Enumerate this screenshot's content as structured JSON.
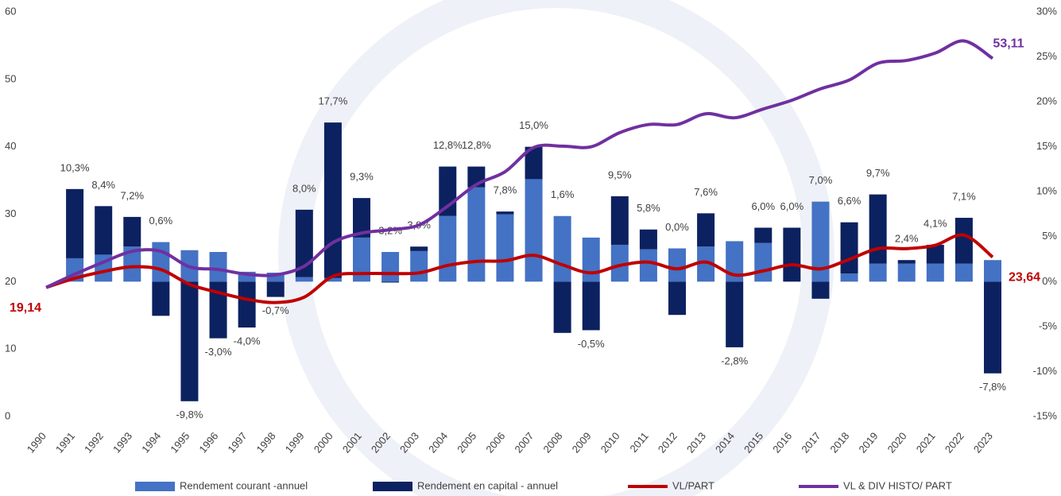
{
  "chart_data": {
    "type": "bar_line",
    "categories": [
      "1990",
      "1991",
      "1992",
      "1993",
      "1994",
      "1995",
      "1996",
      "1997",
      "1998",
      "1999",
      "2000",
      "2001",
      "2002",
      "2003",
      "2004",
      "2005",
      "2006",
      "2007",
      "2008",
      "2009",
      "2010",
      "2011",
      "2012",
      "2013",
      "2014",
      "2015",
      "2016",
      "2017",
      "2018",
      "2019",
      "2020",
      "2021",
      "2022",
      "2023"
    ],
    "series": [
      {
        "name": "Rendement courant -annuel",
        "color": "#4472c4",
        "axis": "y2",
        "kind": "bar",
        "values": [
          null,
          2.6,
          3.0,
          3.9,
          4.4,
          3.5,
          3.3,
          1.1,
          1.0,
          0.5,
          0.4,
          4.9,
          3.3,
          3.4,
          7.3,
          10.5,
          7.5,
          11.4,
          7.3,
          4.9,
          4.1,
          3.6,
          3.7,
          3.9,
          4.5,
          4.3,
          0,
          8.9,
          0.9,
          2.0,
          2.0,
          2.0,
          2.0,
          2.4
        ]
      },
      {
        "name": "Rendement en capital - annuel",
        "color": "#0c2160",
        "axis": "y2",
        "kind": "bar",
        "values": [
          null,
          7.7,
          5.4,
          3.3,
          -3.8,
          -13.3,
          -6.3,
          -5.1,
          -1.7,
          7.5,
          17.3,
          4.4,
          -0.1,
          0.5,
          5.5,
          2.3,
          0.3,
          3.6,
          -5.7,
          -5.4,
          5.4,
          2.2,
          -3.7,
          3.7,
          -7.3,
          1.7,
          6.0,
          -1.9,
          5.7,
          7.7,
          0.4,
          2.1,
          5.1,
          -10.2
        ]
      },
      {
        "name": "VL/PART",
        "color": "#c00000",
        "kind": "line",
        "values": [
          19.14,
          20.5,
          21.5,
          22.2,
          21.8,
          19.6,
          18.4,
          17.4,
          16.9,
          17.7,
          20.8,
          21.2,
          21.2,
          21.3,
          22.4,
          23.0,
          23.1,
          23.9,
          22.5,
          21.3,
          22.4,
          22.9,
          21.9,
          22.9,
          21.0,
          21.6,
          22.5,
          21.9,
          23.3,
          24.9,
          24.9,
          25.4,
          26.9,
          23.64
        ],
        "value_labels": [
          "19,14",
          null,
          null,
          null,
          null,
          null,
          null,
          null,
          null,
          null,
          null,
          null,
          null,
          null,
          null,
          null,
          null,
          null,
          null,
          null,
          null,
          null,
          null,
          null,
          null,
          null,
          null,
          null,
          null,
          null,
          null,
          null,
          null,
          "23,64"
        ]
      },
      {
        "name": "VL & DIV HISTO/ PART",
        "color": "#7030a0",
        "kind": "line",
        "values": [
          19.14,
          21.1,
          22.9,
          24.5,
          24.5,
          22.2,
          21.8,
          21.1,
          21.0,
          22.3,
          25.8,
          27.2,
          27.7,
          28.4,
          31.2,
          34.4,
          36.3,
          39.9,
          40.1,
          40.0,
          42.1,
          43.3,
          43.3,
          44.9,
          44.3,
          45.6,
          46.9,
          48.6,
          49.9,
          52.4,
          52.8,
          53.9,
          55.7,
          53.11
        ],
        "value_labels": [
          null,
          null,
          null,
          null,
          null,
          null,
          null,
          null,
          null,
          null,
          null,
          null,
          null,
          null,
          null,
          null,
          null,
          null,
          null,
          null,
          null,
          null,
          null,
          null,
          null,
          null,
          null,
          null,
          null,
          null,
          null,
          null,
          null,
          "53,11"
        ]
      }
    ],
    "bar_totals": {
      "values": [
        null,
        10.3,
        8.4,
        7.2,
        0.6,
        -9.8,
        -3.0,
        -4.0,
        -0.7,
        8.0,
        17.7,
        9.3,
        3.2,
        3.9,
        12.8,
        12.8,
        7.8,
        15.0,
        1.6,
        -0.5,
        9.5,
        5.8,
        0.0,
        7.6,
        -2.8,
        6.0,
        6.0,
        7.0,
        6.6,
        9.7,
        2.4,
        4.1,
        7.1,
        -7.8
      ],
      "value_labels": [
        null,
        "10,3%",
        "8,4%",
        "7,2%",
        "0,6%",
        "-9,8%",
        "-3,0%",
        "-4,0%",
        "-0,7%",
        "8,0%",
        "17,7%",
        "9,3%",
        "3,2%",
        "3,9%",
        "12,8%",
        "12,8%",
        "7,8%",
        "15,0%",
        "1,6%",
        "-0,5%",
        "9,5%",
        "5,8%",
        "0,0%",
        "7,6%",
        "-2,8%",
        "6,0%",
        "6,0%",
        "7,0%",
        "6,6%",
        "9,7%",
        "2,4%",
        "4,1%",
        "7,1%",
        "-7,8%"
      ]
    },
    "ylim": [
      0,
      60
    ],
    "yticks": [
      0,
      10,
      20,
      30,
      40,
      50,
      60
    ],
    "y2lim": [
      -15,
      30
    ],
    "y2ticks": [
      {
        "value": -15,
        "label": "-15%"
      },
      {
        "value": -10,
        "label": "-10%"
      },
      {
        "value": -5,
        "label": "-5%"
      },
      {
        "value": 0,
        "label": "0%"
      },
      {
        "value": 5,
        "label": "5%"
      },
      {
        "value": 10,
        "label": "10%"
      },
      {
        "value": 15,
        "label": "15%"
      },
      {
        "value": 20,
        "label": "20%"
      },
      {
        "value": 25,
        "label": "25%"
      },
      {
        "value": 30,
        "label": "30%"
      }
    ],
    "legend": "bottom"
  }
}
